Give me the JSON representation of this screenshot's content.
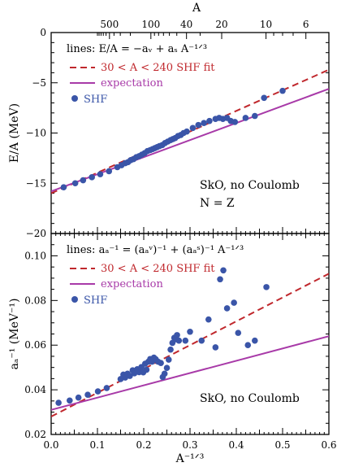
{
  "colors": {
    "fit": "#c0282d",
    "expectation": "#a83aa8",
    "shf": "#3a55a8",
    "axis": "#000000"
  },
  "chart_data": [
    {
      "type": "scatter",
      "xlabel": "A⁻¹ᐟ³",
      "ylabel": "E/A (MeV)",
      "xlim": [
        0,
        0.6
      ],
      "ylim": [
        -20,
        0
      ],
      "x_ticks": [
        "0.0",
        "0.1",
        "0.2",
        "0.3",
        "0.4",
        "0.5",
        "0.6"
      ],
      "y_ticks": [
        "0",
        "−5",
        "−10",
        "−15",
        "−20"
      ],
      "top_axis": {
        "label": "A",
        "ticks": [
          {
            "A": 500,
            "label": "500"
          },
          {
            "A": 100,
            "label": "100"
          },
          {
            "A": 40,
            "label": "40"
          },
          {
            "A": 20,
            "label": "20"
          },
          {
            "A": 10,
            "label": "10"
          },
          {
            "A": 6,
            "label": "6"
          }
        ]
      },
      "legend": {
        "title": "lines: E/A = −aᵥ + aₛ A⁻¹ᐟ³",
        "entries": [
          "30 < A < 240 SHF fit",
          "expectation",
          "SHF"
        ]
      },
      "annotations": [
        "SkO, no Coulomb",
        "N = Z"
      ],
      "series": [
        {
          "name": "30 < A < 240 SHF fit",
          "kind": "line",
          "style": "dashed",
          "x": [
            0,
            0.6
          ],
          "y": [
            -16.0,
            -3.7
          ]
        },
        {
          "name": "expectation",
          "kind": "line",
          "style": "solid",
          "x": [
            0,
            0.6
          ],
          "y": [
            -15.8,
            -5.6
          ]
        },
        {
          "name": "SHF",
          "kind": "scatter",
          "points": [
            [
              0.027,
              -15.4
            ],
            [
              0.052,
              -15.0
            ],
            [
              0.069,
              -14.7
            ],
            [
              0.088,
              -14.4
            ],
            [
              0.106,
              -14.1
            ],
            [
              0.125,
              -13.8
            ],
            [
              0.143,
              -13.4
            ],
            [
              0.152,
              -13.2
            ],
            [
              0.16,
              -13.0
            ],
            [
              0.166,
              -12.9
            ],
            [
              0.172,
              -12.7
            ],
            [
              0.178,
              -12.6
            ],
            [
              0.184,
              -12.4
            ],
            [
              0.19,
              -12.3
            ],
            [
              0.196,
              -12.15
            ],
            [
              0.202,
              -12.0
            ],
            [
              0.208,
              -11.8
            ],
            [
              0.214,
              -11.7
            ],
            [
              0.219,
              -11.6
            ],
            [
              0.224,
              -11.5
            ],
            [
              0.229,
              -11.4
            ],
            [
              0.234,
              -11.3
            ],
            [
              0.24,
              -11.2
            ],
            [
              0.246,
              -11.0
            ],
            [
              0.252,
              -10.85
            ],
            [
              0.258,
              -10.7
            ],
            [
              0.263,
              -10.6
            ],
            [
              0.268,
              -10.5
            ],
            [
              0.274,
              -10.3
            ],
            [
              0.28,
              -10.2
            ],
            [
              0.286,
              -10.0
            ],
            [
              0.293,
              -9.85
            ],
            [
              0.306,
              -9.5
            ],
            [
              0.318,
              -9.2
            ],
            [
              0.33,
              -9.0
            ],
            [
              0.342,
              -8.8
            ],
            [
              0.355,
              -8.6
            ],
            [
              0.363,
              -8.5
            ],
            [
              0.371,
              -8.6
            ],
            [
              0.38,
              -8.5
            ],
            [
              0.388,
              -8.8
            ],
            [
              0.397,
              -8.9
            ],
            [
              0.42,
              -8.5
            ],
            [
              0.44,
              -8.3
            ],
            [
              0.46,
              -6.5
            ],
            [
              0.5,
              -5.8
            ]
          ]
        }
      ]
    },
    {
      "type": "scatter",
      "xlabel": "A⁻¹ᐟ³",
      "ylabel": "aₐ⁻¹ (MeV⁻¹)",
      "xlim": [
        0,
        0.6
      ],
      "ylim": [
        0.02,
        0.11
      ],
      "x_ticks": [
        "0.0",
        "0.1",
        "0.2",
        "0.3",
        "0.4",
        "0.5",
        "0.6"
      ],
      "y_ticks": [
        "0.02",
        "0.04",
        "0.06",
        "0.08",
        "0.10"
      ],
      "legend": {
        "title": "lines: aₐ⁻¹ = (aₐᵛ)⁻¹ + (aₐˢ)⁻¹ A⁻¹ᐟ³",
        "entries": [
          "30 < A < 240 SHF fit",
          "expectation",
          "SHF"
        ]
      },
      "annotations": [
        "SkO, no Coulomb"
      ],
      "series": [
        {
          "name": "30 < A < 240 SHF fit",
          "kind": "line",
          "style": "dashed",
          "x": [
            0,
            0.6
          ],
          "y": [
            0.028,
            0.092
          ]
        },
        {
          "name": "expectation",
          "kind": "line",
          "style": "solid",
          "x": [
            0,
            0.6
          ],
          "y": [
            0.031,
            0.064
          ]
        },
        {
          "name": "SHF",
          "kind": "scatter",
          "points": [
            [
              0.016,
              0.0342
            ],
            [
              0.04,
              0.0352
            ],
            [
              0.059,
              0.0365
            ],
            [
              0.079,
              0.0378
            ],
            [
              0.101,
              0.0393
            ],
            [
              0.12,
              0.0408
            ],
            [
              0.15,
              0.0448
            ],
            [
              0.156,
              0.0468
            ],
            [
              0.16,
              0.0455
            ],
            [
              0.165,
              0.0472
            ],
            [
              0.17,
              0.0462
            ],
            [
              0.176,
              0.0487
            ],
            [
              0.18,
              0.0474
            ],
            [
              0.186,
              0.0492
            ],
            [
              0.19,
              0.0479
            ],
            [
              0.195,
              0.0502
            ],
            [
              0.199,
              0.0478
            ],
            [
              0.203,
              0.0517
            ],
            [
              0.206,
              0.049
            ],
            [
              0.21,
              0.0526
            ],
            [
              0.214,
              0.0538
            ],
            [
              0.218,
              0.0526
            ],
            [
              0.222,
              0.0544
            ],
            [
              0.226,
              0.0537
            ],
            [
              0.231,
              0.0526
            ],
            [
              0.237,
              0.052
            ],
            [
              0.241,
              0.0457
            ],
            [
              0.245,
              0.0472
            ],
            [
              0.25,
              0.0498
            ],
            [
              0.254,
              0.0535
            ],
            [
              0.258,
              0.058
            ],
            [
              0.262,
              0.061
            ],
            [
              0.266,
              0.0633
            ],
            [
              0.27,
              0.0626
            ],
            [
              0.272,
              0.0645
            ],
            [
              0.276,
              0.062
            ],
            [
              0.29,
              0.062
            ],
            [
              0.3,
              0.066
            ],
            [
              0.325,
              0.062
            ],
            [
              0.34,
              0.0715
            ],
            [
              0.355,
              0.059
            ],
            [
              0.365,
              0.0895
            ],
            [
              0.372,
              0.0935
            ],
            [
              0.38,
              0.0765
            ],
            [
              0.395,
              0.079
            ],
            [
              0.404,
              0.0655
            ],
            [
              0.425,
              0.06
            ],
            [
              0.44,
              0.062
            ],
            [
              0.465,
              0.086
            ]
          ]
        }
      ]
    }
  ]
}
